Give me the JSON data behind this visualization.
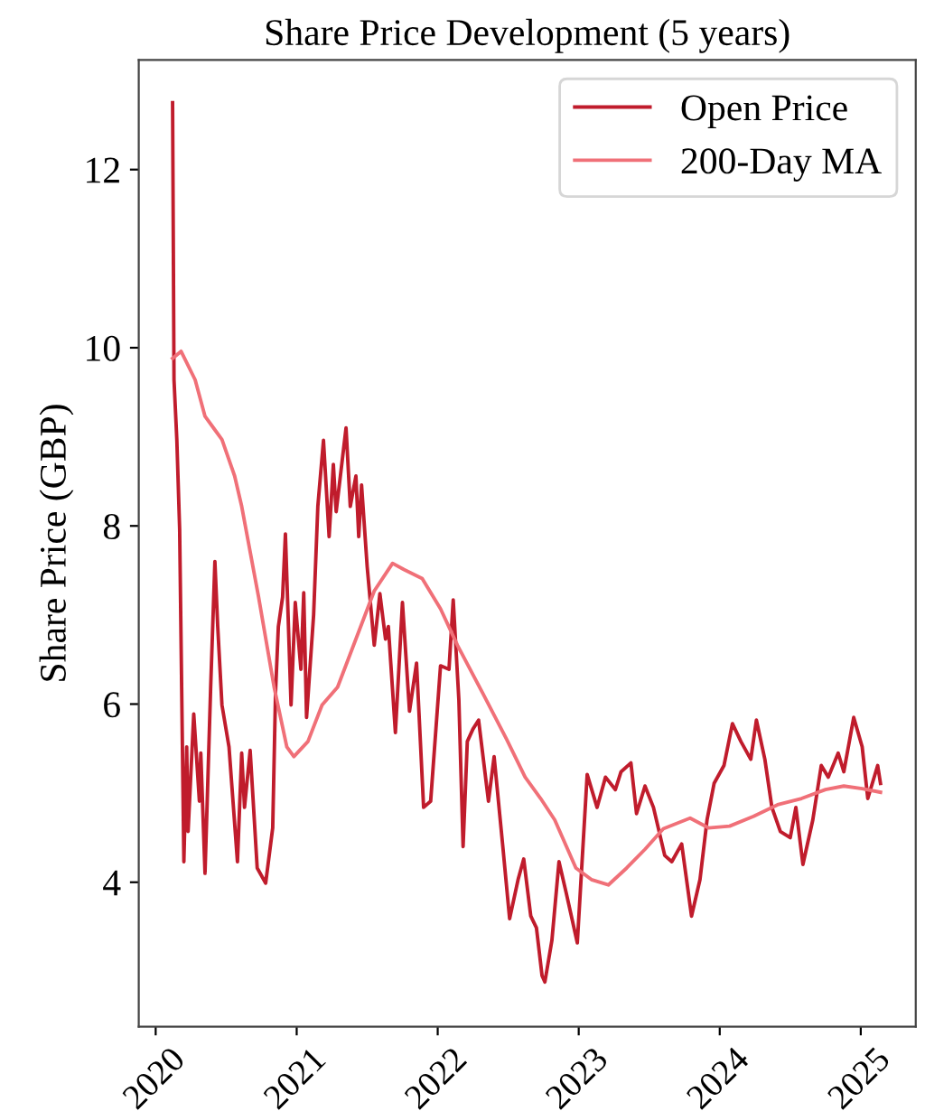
{
  "chart_data": {
    "type": "line",
    "title": "Share Price Development (5 years)",
    "ylabel": "Share Price (GBP)",
    "xlim": [
      2019.88,
      2025.39
    ],
    "xticks": [
      2020,
      2021,
      2022,
      2023,
      2024,
      2025
    ],
    "ylim": [
      2.38,
      13.23
    ],
    "yticks": [
      4,
      6,
      8,
      10,
      12
    ],
    "grid": false,
    "legend": "top right",
    "series": [
      {
        "name": "Open Price",
        "color": "#c01c2c",
        "x": [
          2020.12,
          2020.13,
          2020.15,
          2020.17,
          2020.2,
          2020.22,
          2020.23,
          2020.27,
          2020.31,
          2020.32,
          2020.35,
          2020.39,
          2020.42,
          2020.44,
          2020.47,
          2020.52,
          2020.58,
          2020.61,
          2020.63,
          2020.67,
          2020.72,
          2020.78,
          2020.83,
          2020.85,
          2020.87,
          2020.9,
          2020.92,
          2020.96,
          2020.99,
          2021.03,
          2021.05,
          2021.07,
          2021.12,
          2021.15,
          2021.19,
          2021.23,
          2021.26,
          2021.28,
          2021.35,
          2021.38,
          2021.42,
          2021.44,
          2021.46,
          2021.5,
          2021.55,
          2021.59,
          2021.63,
          2021.65,
          2021.7,
          2021.75,
          2021.8,
          2021.85,
          2021.9,
          2021.95,
          2022.02,
          2022.08,
          2022.11,
          2022.15,
          2022.18,
          2022.21,
          2022.25,
          2022.29,
          2022.36,
          2022.4,
          2022.46,
          2022.51,
          2022.57,
          2022.61,
          2022.66,
          2022.7,
          2022.74,
          2022.76,
          2022.81,
          2022.86,
          2022.91,
          2022.99,
          2023.06,
          2023.13,
          2023.19,
          2023.26,
          2023.3,
          2023.37,
          2023.41,
          2023.47,
          2023.53,
          2023.61,
          2023.66,
          2023.73,
          2023.8,
          2023.86,
          2023.91,
          2023.96,
          2024.03,
          2024.09,
          2024.15,
          2024.22,
          2024.26,
          2024.32,
          2024.37,
          2024.43,
          2024.5,
          2024.54,
          2024.59,
          2024.66,
          2024.72,
          2024.77,
          2024.84,
          2024.88,
          2024.95,
          2025.01,
          2025.05,
          2025.12,
          2025.14
        ],
        "values": [
          12.75,
          9.64,
          8.97,
          7.96,
          4.23,
          5.52,
          4.57,
          5.89,
          4.91,
          5.45,
          4.1,
          6.19,
          7.6,
          6.87,
          5.99,
          5.52,
          4.23,
          5.45,
          4.84,
          5.48,
          4.16,
          3.99,
          4.61,
          6.13,
          6.87,
          7.2,
          7.91,
          5.99,
          7.14,
          6.39,
          7.25,
          5.85,
          7.0,
          8.22,
          8.96,
          7.88,
          8.69,
          8.16,
          9.1,
          8.22,
          8.56,
          7.88,
          8.46,
          7.54,
          6.66,
          7.24,
          6.73,
          6.87,
          5.68,
          7.14,
          5.92,
          6.46,
          4.84,
          4.91,
          6.43,
          6.39,
          7.17,
          6.05,
          4.4,
          5.58,
          5.72,
          5.82,
          4.91,
          5.41,
          4.43,
          3.59,
          4.03,
          4.26,
          3.62,
          3.49,
          2.95,
          2.88,
          3.35,
          4.23,
          3.89,
          3.32,
          5.21,
          4.84,
          5.18,
          5.04,
          5.24,
          5.34,
          4.77,
          5.08,
          4.84,
          4.3,
          4.23,
          4.43,
          3.62,
          4.03,
          4.7,
          5.11,
          5.31,
          5.78,
          5.58,
          5.38,
          5.82,
          5.38,
          4.84,
          4.57,
          4.5,
          4.84,
          4.2,
          4.7,
          5.31,
          5.18,
          5.45,
          5.24,
          5.85,
          5.52,
          4.94,
          5.31,
          5.11
        ]
      },
      {
        "name": "200-Day MA",
        "color": "#f07078",
        "x": [
          2020.12,
          2020.18,
          2020.28,
          2020.35,
          2020.41,
          2020.47,
          2020.56,
          2020.61,
          2020.73,
          2020.84,
          2020.93,
          2020.98,
          2021.08,
          2021.18,
          2021.29,
          2021.42,
          2021.55,
          2021.68,
          2021.76,
          2021.89,
          2022.02,
          2022.14,
          2022.32,
          2022.49,
          2022.62,
          2022.73,
          2022.83,
          2022.98,
          2023.09,
          2023.21,
          2023.34,
          2023.47,
          2023.6,
          2023.79,
          2023.92,
          2024.07,
          2024.24,
          2024.41,
          2024.58,
          2024.75,
          2024.88,
          2025.01,
          2025.14
        ],
        "values": [
          9.88,
          9.96,
          9.64,
          9.23,
          9.1,
          8.97,
          8.56,
          8.22,
          7.2,
          6.19,
          5.52,
          5.41,
          5.58,
          5.99,
          6.19,
          6.73,
          7.27,
          7.58,
          7.51,
          7.41,
          7.07,
          6.66,
          6.12,
          5.6,
          5.18,
          4.94,
          4.7,
          4.16,
          4.03,
          3.97,
          4.16,
          4.37,
          4.6,
          4.72,
          4.61,
          4.63,
          4.74,
          4.87,
          4.94,
          5.04,
          5.08,
          5.05,
          5.01
        ]
      }
    ]
  }
}
